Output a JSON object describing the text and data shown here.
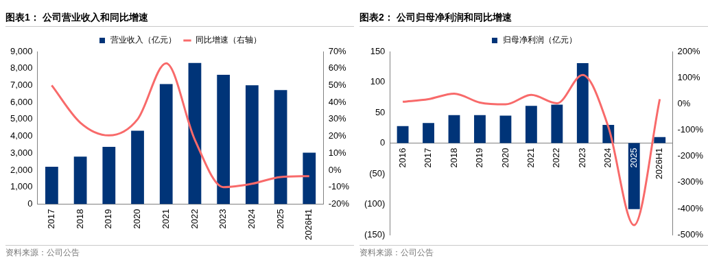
{
  "chart_data": [
    {
      "type": "bar",
      "title": "图表1：  公司营业收入和同比增速",
      "categories": [
        "2017",
        "2018",
        "2019",
        "2020",
        "2021",
        "2022",
        "2023",
        "2024",
        "2025",
        "2026H1"
      ],
      "series": [
        {
          "name": "营业收入（亿元）",
          "color": "#003478",
          "values": [
            2200,
            2800,
            3380,
            4330,
            7080,
            8320,
            7620,
            7010,
            6720,
            3030
          ]
        },
        {
          "name": "同比增速（右轴）",
          "type": "line",
          "axis": "y2",
          "color": "#f86a6a",
          "values": [
            50,
            28,
            20.5,
            30,
            63,
            18,
            -10,
            -8,
            -4,
            -3.5
          ]
        }
      ],
      "ylim": [
        0,
        9000
      ],
      "yticks": [
        0,
        {
          "value": 1000,
          "label": "1,000"
        },
        {
          "value": 2000,
          "label": "2,000"
        },
        {
          "value": 3000,
          "label": "3,000"
        },
        {
          "value": 4000,
          "label": "4,000"
        },
        {
          "value": 5000,
          "label": "5,000"
        },
        {
          "value": 6000,
          "label": "6,000"
        },
        {
          "value": 7000,
          "label": "7,000"
        },
        {
          "value": 8000,
          "label": "8,000"
        },
        {
          "value": 9000,
          "label": "9,000"
        }
      ],
      "y2lim": [
        -20,
        70
      ],
      "y2ticks": [
        {
          "value": -20,
          "label": "-20%"
        },
        {
          "value": -10,
          "label": "-10%"
        },
        {
          "value": 0,
          "label": "0%"
        },
        {
          "value": 10,
          "label": "10%"
        },
        {
          "value": 20,
          "label": "20%"
        },
        {
          "value": 30,
          "label": "30%"
        },
        {
          "value": 40,
          "label": "40%"
        },
        {
          "value": 50,
          "label": "50%"
        },
        {
          "value": 60,
          "label": "60%"
        },
        {
          "value": 70,
          "label": "70%"
        }
      ],
      "legend": "top",
      "annotations": [
        "资料来源：公司公告"
      ]
    },
    {
      "type": "bar",
      "title": "图表2：  公司归母净利润和同比增速",
      "categories": [
        "2016",
        "2017",
        "2018",
        "2019",
        "2020",
        "2021",
        "2022",
        "2023",
        "2024",
        "2025",
        "2026H1"
      ],
      "series": [
        {
          "name": "归母净利润（亿元）",
          "color": "#003478",
          "values": [
            28,
            33,
            46,
            46,
            45,
            61,
            63,
            131,
            30,
            -108,
            10
          ]
        },
        {
          "type": "line",
          "axis": "y2",
          "color": "#f86a6a",
          "values": [
            8,
            18,
            39,
            5,
            -2,
            34,
            2,
            110,
            -88,
            -463,
            18
          ]
        }
      ],
      "ylim": [
        -150,
        150
      ],
      "yticks": [
        {
          "value": -150,
          "label": "(150)"
        },
        {
          "value": -100,
          "label": "(100)"
        },
        {
          "value": -50,
          "label": "(50)"
        },
        0,
        50,
        100,
        150
      ],
      "y2lim": [
        -500,
        200
      ],
      "y2ticks": [
        {
          "value": -500,
          "label": "-500%"
        },
        {
          "value": -400,
          "label": "-400%"
        },
        {
          "value": -300,
          "label": "-300%"
        },
        {
          "value": -200,
          "label": "-200%"
        },
        {
          "value": -100,
          "label": "-100%"
        },
        {
          "value": 0,
          "label": "0%"
        },
        {
          "value": 100,
          "label": "100%"
        },
        {
          "value": 200,
          "label": "200%"
        }
      ],
      "legend": "top",
      "annotations": [
        "资料来源：公司公告"
      ]
    }
  ]
}
